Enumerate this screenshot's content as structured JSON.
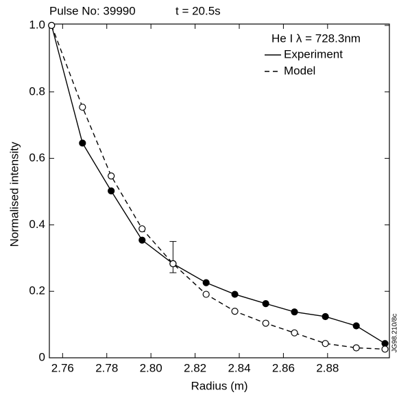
{
  "chart_data": {
    "type": "line",
    "title": "Pulse No: 39990",
    "subtitle": "t = 20.5s",
    "legend_title": "He I λ = 728.3nm",
    "side_label": "JG98.210/8c",
    "x_label": "Radius (m)",
    "y_label": "Normalised intensity",
    "xlim": [
      2.754,
      2.908
    ],
    "ylim": [
      0,
      1.0
    ],
    "xticks": [
      2.76,
      2.78,
      {
        "value": 2.8,
        "label": "2.80"
      },
      2.82,
      2.84,
      2.86,
      2.88
    ],
    "yticks": [
      0,
      0.2,
      0.4,
      0.6,
      0.8,
      {
        "value": 1,
        "label": "1.0"
      }
    ],
    "x": [
      2.755,
      2.769,
      2.782,
      2.796,
      2.81,
      2.825,
      2.838,
      2.852,
      2.865,
      2.879,
      2.893,
      2.906
    ],
    "series": [
      {
        "name": "Experiment",
        "color": "#000000",
        "dash": false,
        "marker": "filled",
        "values": [
          1.0,
          0.646,
          0.502,
          0.354,
          0.283,
          0.226,
          0.191,
          0.163,
          0.138,
          0.124,
          0.096,
          0.043
        ]
      },
      {
        "name": "Model",
        "color": "#000000",
        "dash": true,
        "marker": "open",
        "values": [
          1.0,
          0.754,
          0.547,
          0.388,
          0.283,
          0.191,
          0.14,
          0.104,
          0.075,
          0.043,
          0.03,
          0.026
        ]
      }
    ],
    "error_bar": {
      "x": 2.81,
      "lower": 0.256,
      "upper": 0.35
    }
  }
}
